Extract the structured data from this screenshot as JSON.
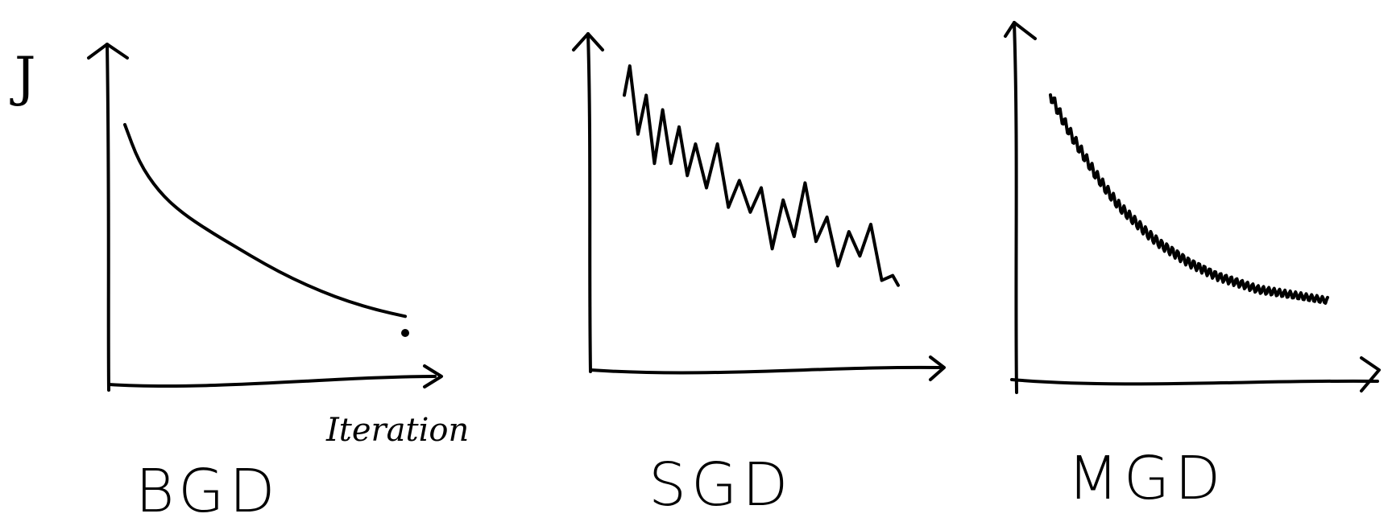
{
  "y_axis_label": "J",
  "x_axis_label": "Iteration",
  "chart_data": [
    {
      "type": "line",
      "panel_label": "BGD",
      "ylabel": "J",
      "xlabel": "Iteration",
      "x": [
        0,
        0.05,
        0.12,
        0.2,
        0.3,
        0.4,
        0.5,
        0.6,
        0.7,
        0.8,
        0.9,
        1.0
      ],
      "y": [
        1.0,
        0.82,
        0.68,
        0.58,
        0.49,
        0.41,
        0.33,
        0.26,
        0.2,
        0.15,
        0.11,
        0.08
      ],
      "grid": false
    },
    {
      "type": "line",
      "panel_label": "SGD",
      "ylabel": "",
      "xlabel": "",
      "x": [
        0.0,
        0.02,
        0.05,
        0.08,
        0.11,
        0.14,
        0.17,
        0.2,
        0.23,
        0.26,
        0.3,
        0.34,
        0.38,
        0.42,
        0.46,
        0.5,
        0.54,
        0.58,
        0.62,
        0.66,
        0.7,
        0.74,
        0.78,
        0.82,
        0.86,
        0.9,
        0.94,
        0.98,
        1.0
      ],
      "y": [
        0.88,
        1.0,
        0.72,
        0.88,
        0.6,
        0.82,
        0.6,
        0.75,
        0.55,
        0.68,
        0.5,
        0.68,
        0.42,
        0.53,
        0.4,
        0.5,
        0.25,
        0.45,
        0.3,
        0.52,
        0.28,
        0.38,
        0.18,
        0.32,
        0.22,
        0.35,
        0.12,
        0.14,
        0.1
      ],
      "grid": false
    },
    {
      "type": "line",
      "panel_label": "MGD",
      "ylabel": "",
      "xlabel": "",
      "x": [
        0.0,
        0.04,
        0.08,
        0.12,
        0.16,
        0.2,
        0.25,
        0.3,
        0.35,
        0.4,
        0.45,
        0.5,
        0.55,
        0.6,
        0.65,
        0.7,
        0.75,
        0.8,
        0.85,
        0.9,
        0.95,
        1.0
      ],
      "y": [
        1.0,
        0.9,
        0.81,
        0.73,
        0.65,
        0.58,
        0.5,
        0.44,
        0.38,
        0.33,
        0.29,
        0.25,
        0.22,
        0.19,
        0.17,
        0.15,
        0.13,
        0.12,
        0.11,
        0.1,
        0.09,
        0.08
      ],
      "noise": "small oscillations",
      "grid": false
    }
  ]
}
